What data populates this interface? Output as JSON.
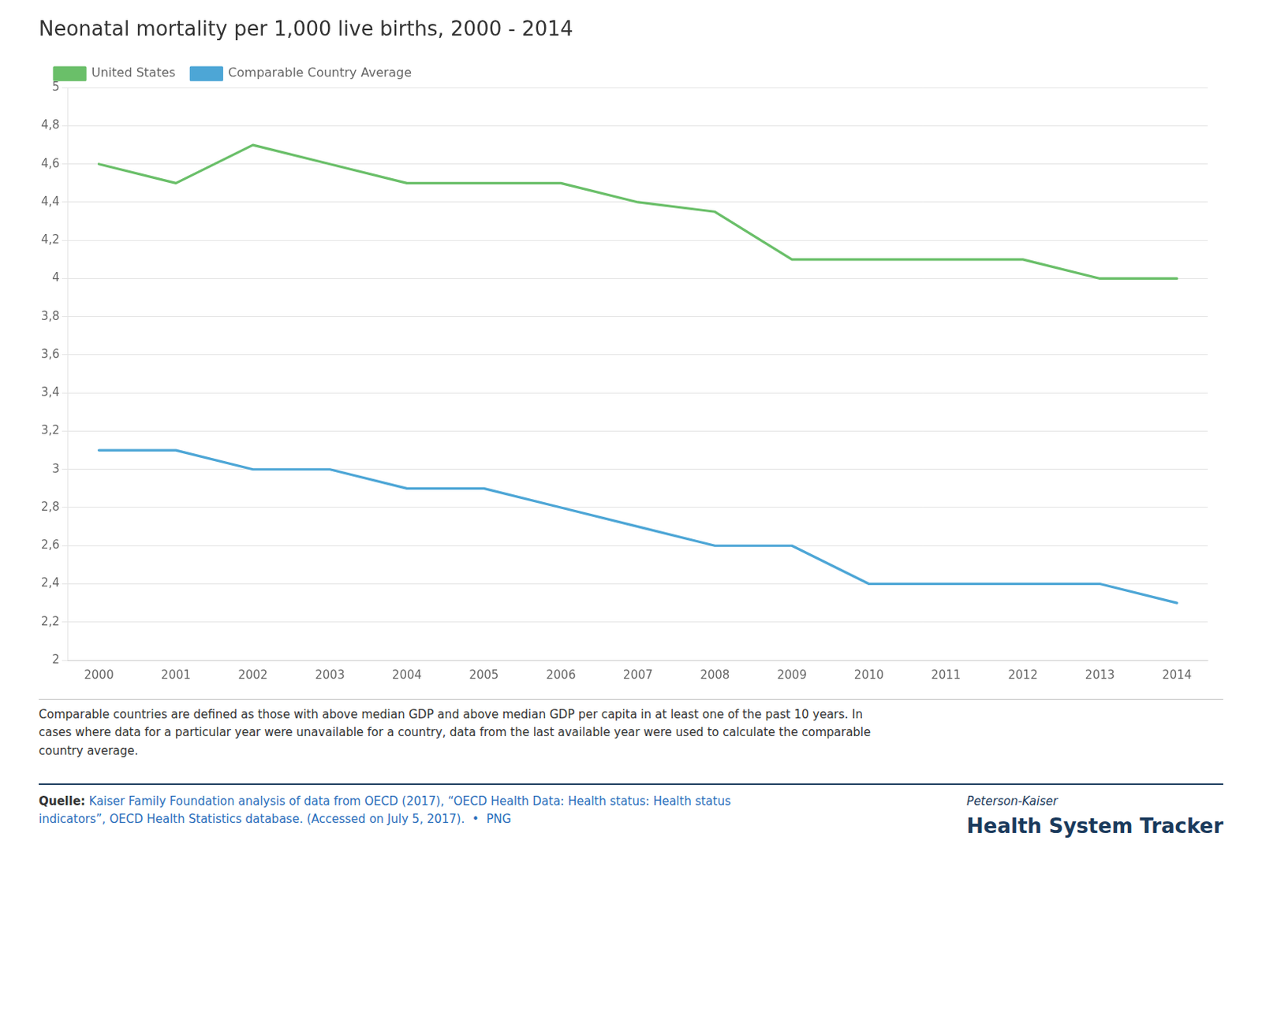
{
  "chart_data": {
    "type": "line",
    "title": "Neonatal mortality per 1,000 live births, 2000 - 2014",
    "x": [
      2000,
      2001,
      2002,
      2003,
      2004,
      2005,
      2006,
      2007,
      2008,
      2009,
      2010,
      2011,
      2012,
      2013,
      2014
    ],
    "series": [
      {
        "name": "United States",
        "color": "#6abf69",
        "values": [
          4.6,
          4.5,
          4.7,
          4.6,
          4.5,
          4.5,
          4.5,
          4.4,
          4.35,
          4.1,
          4.1,
          4.1,
          4.1,
          4.0,
          4.0
        ]
      },
      {
        "name": "Comparable Country Average",
        "color": "#4da6d6",
        "values": [
          3.1,
          3.1,
          3.0,
          3.0,
          2.9,
          2.9,
          2.8,
          2.7,
          2.6,
          2.6,
          2.4,
          2.4,
          2.4,
          2.4,
          2.3
        ]
      }
    ],
    "xlim": [
      1999.6,
      2014.4
    ],
    "xticks": [
      2000,
      2001,
      2002,
      2003,
      2004,
      2005,
      2006,
      2007,
      2008,
      2009,
      2010,
      2011,
      2012,
      2013,
      2014
    ],
    "ylim": [
      2.0,
      5.0
    ],
    "yticks": [
      2,
      {
        "value": 2.2,
        "label": "2,2"
      },
      {
        "value": 2.4,
        "label": "2,4"
      },
      {
        "value": 2.6,
        "label": "2,6"
      },
      {
        "value": 2.8,
        "label": "2,8"
      },
      3,
      {
        "value": 3.2,
        "label": "3,2"
      },
      {
        "value": 3.4,
        "label": "3,4"
      },
      {
        "value": 3.6,
        "label": "3,6"
      },
      {
        "value": 3.8,
        "label": "3,8"
      },
      4,
      {
        "value": 4.2,
        "label": "4,2"
      },
      {
        "value": 4.4,
        "label": "4,4"
      },
      {
        "value": 4.6,
        "label": "4,6"
      },
      {
        "value": 4.8,
        "label": "4,8"
      },
      5
    ],
    "grid": true,
    "legend": "upper left",
    "annotations": [
      "Comparable countries are defined as those with above median GDP and above median GDP per capita in at least one of the past 10 years. In\ncases where data for a particular year were unavailable for a country, data from the last available year were used to calculate the comparable\ncountry average.",
      "Quelle:",
      " Kaiser Family Foundation analysis of data from OECD (2017), “OECD Health Data: Health status: Health status\nindicators”, OECD Health Statistics database. (Accessed on July 5, 2017).  •  PNG",
      "Peterson-Kaiser",
      "Health System Tracker"
    ]
  }
}
